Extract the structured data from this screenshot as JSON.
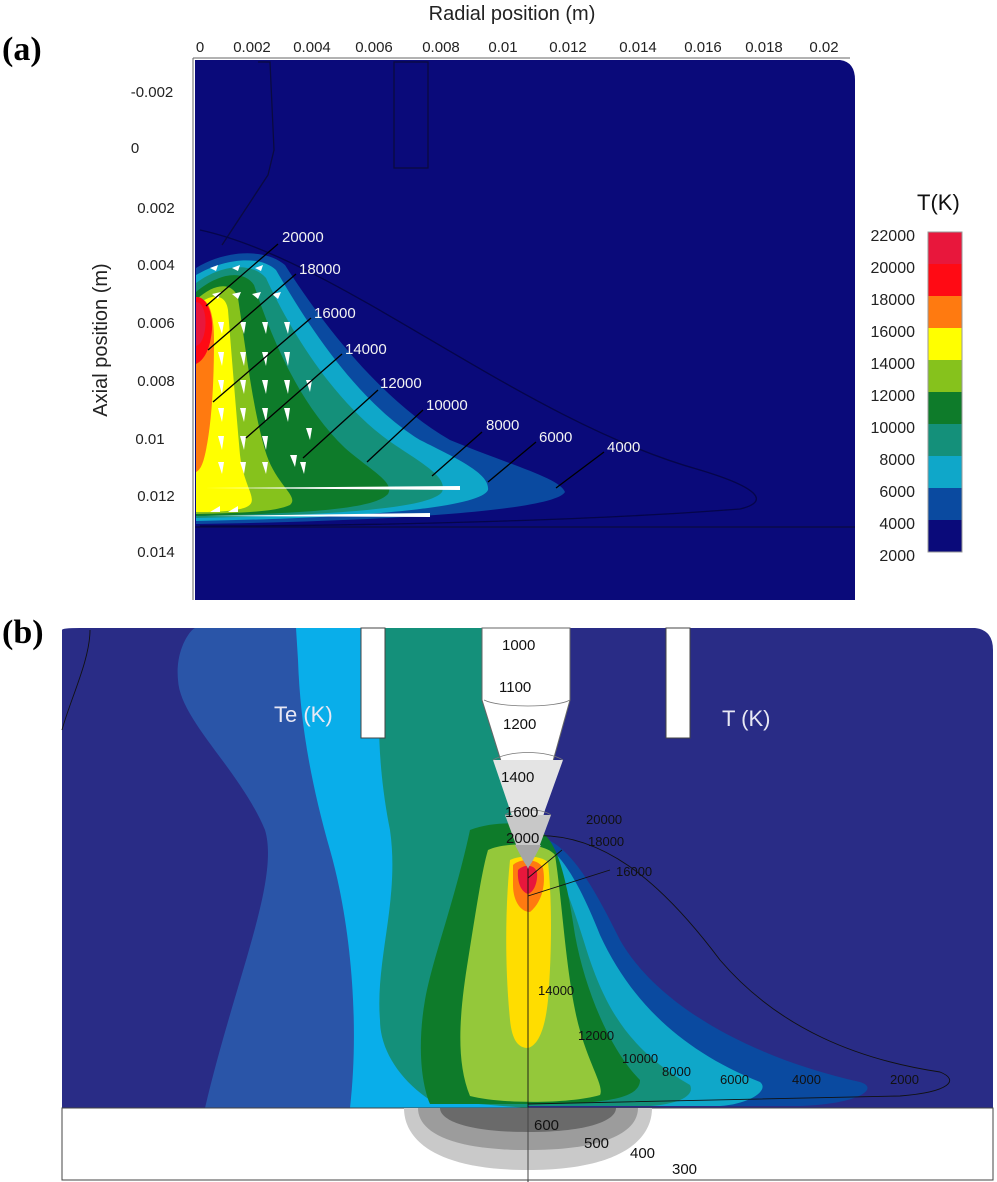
{
  "panel_a": {
    "label": "(a)",
    "x_axis_title": "Radial position (m)",
    "y_axis_title": "Axial position (m)",
    "x_ticks": [
      "0",
      "0.002",
      "0.004",
      "0.006",
      "0.008",
      "0.01",
      "0.012",
      "0.014",
      "0.016",
      "0.018",
      "0.02"
    ],
    "y_ticks": [
      "-0.002",
      "0",
      "0.002",
      "0.004",
      "0.006",
      "0.008",
      "0.01",
      "0.012",
      "0.014"
    ],
    "isotherms": [
      "20000",
      "18000",
      "16000",
      "14000",
      "12000",
      "10000",
      "8000",
      "6000",
      "4000"
    ],
    "colorbar": {
      "title": "T(K)",
      "labels": [
        "22000",
        "20000",
        "18000",
        "16000",
        "14000",
        "12000",
        "10000",
        "8000",
        "6000",
        "4000",
        "2000"
      ],
      "colors": [
        "#e8173c",
        "#ff0a14",
        "#ff7a10",
        "#ffff00",
        "#86c21c",
        "#0e7b2a",
        "#14907a",
        "#0fa7c9",
        "#0a4aa0",
        "#0a0a7a"
      ]
    }
  },
  "panel_b": {
    "label": "(b)",
    "left_title": "Te (K)",
    "right_title": "T (K)",
    "electrode_labels": [
      "1000",
      "1100",
      "1200",
      "1400",
      "1600",
      "2000"
    ],
    "isotherm_labels": [
      "20000",
      "18000",
      "16000",
      "14000",
      "12000",
      "10000",
      "8000",
      "6000",
      "4000",
      "2000"
    ],
    "workpiece_labels": [
      "600",
      "500",
      "400",
      "300"
    ]
  }
}
